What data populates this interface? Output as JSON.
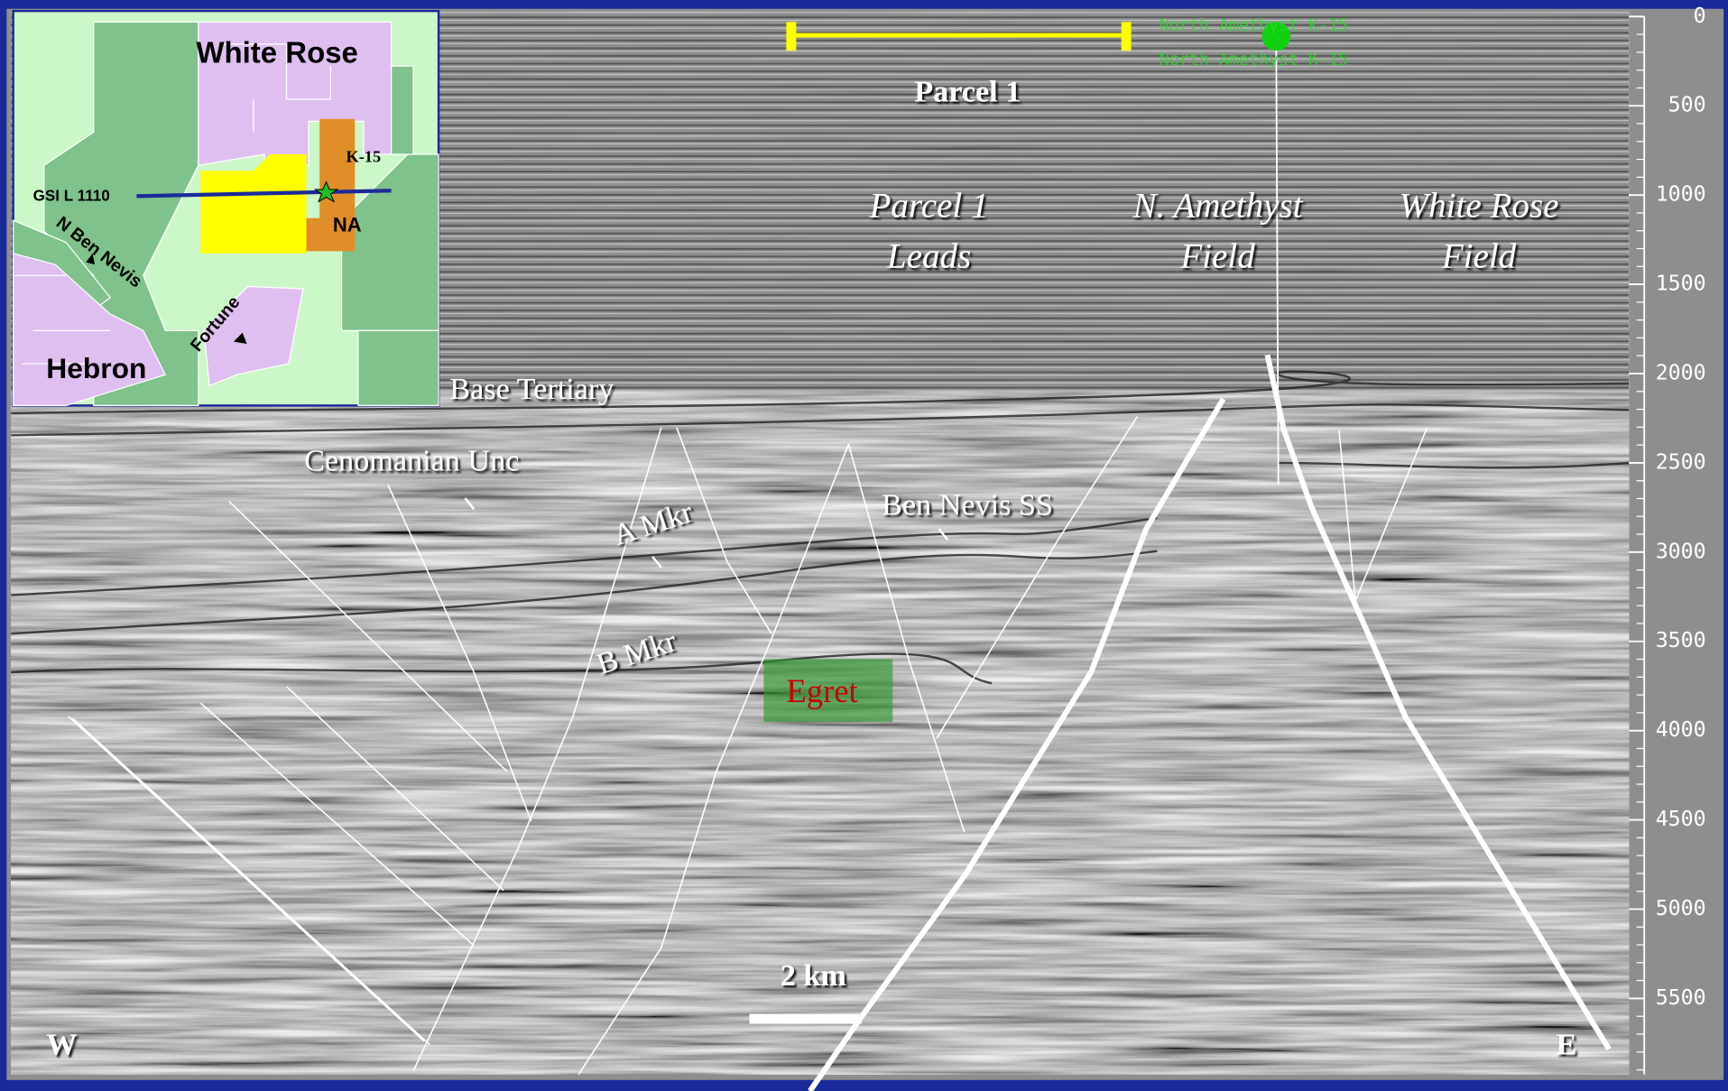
{
  "map_inset": {
    "white_rose": "White Rose",
    "k15": "K-15",
    "seismic_line": "GSI L 1110",
    "na": "NA",
    "n_ben_nevis": "N Ben Nevis",
    "fortune": "Fortune",
    "hebron": "Hebron"
  },
  "well": {
    "labels": [
      "North Amethyst K-15",
      "North Amethyst K-15"
    ]
  },
  "title": "Parcel 1",
  "areas": [
    {
      "lines": [
        "Parcel 1",
        "Leads"
      ]
    },
    {
      "lines": [
        "N. Amethyst",
        "Field"
      ]
    },
    {
      "lines": [
        "White Rose",
        "Field"
      ]
    }
  ],
  "horizons": {
    "base_tertiary": "Base Tertiary",
    "cenomanian": "Cenomanian Unc",
    "a_mkr": "A Mkr",
    "b_mkr": "B Mkr",
    "ben_nevis": "Ben Nevis SS"
  },
  "prospect": "Egret",
  "scale_bar": "2 km",
  "west": "W",
  "east": "E",
  "depth_axis": {
    "ticks": [
      0,
      500,
      1000,
      1500,
      2000,
      2500,
      3000,
      3500,
      4000,
      4500,
      5000,
      5500
    ]
  }
}
